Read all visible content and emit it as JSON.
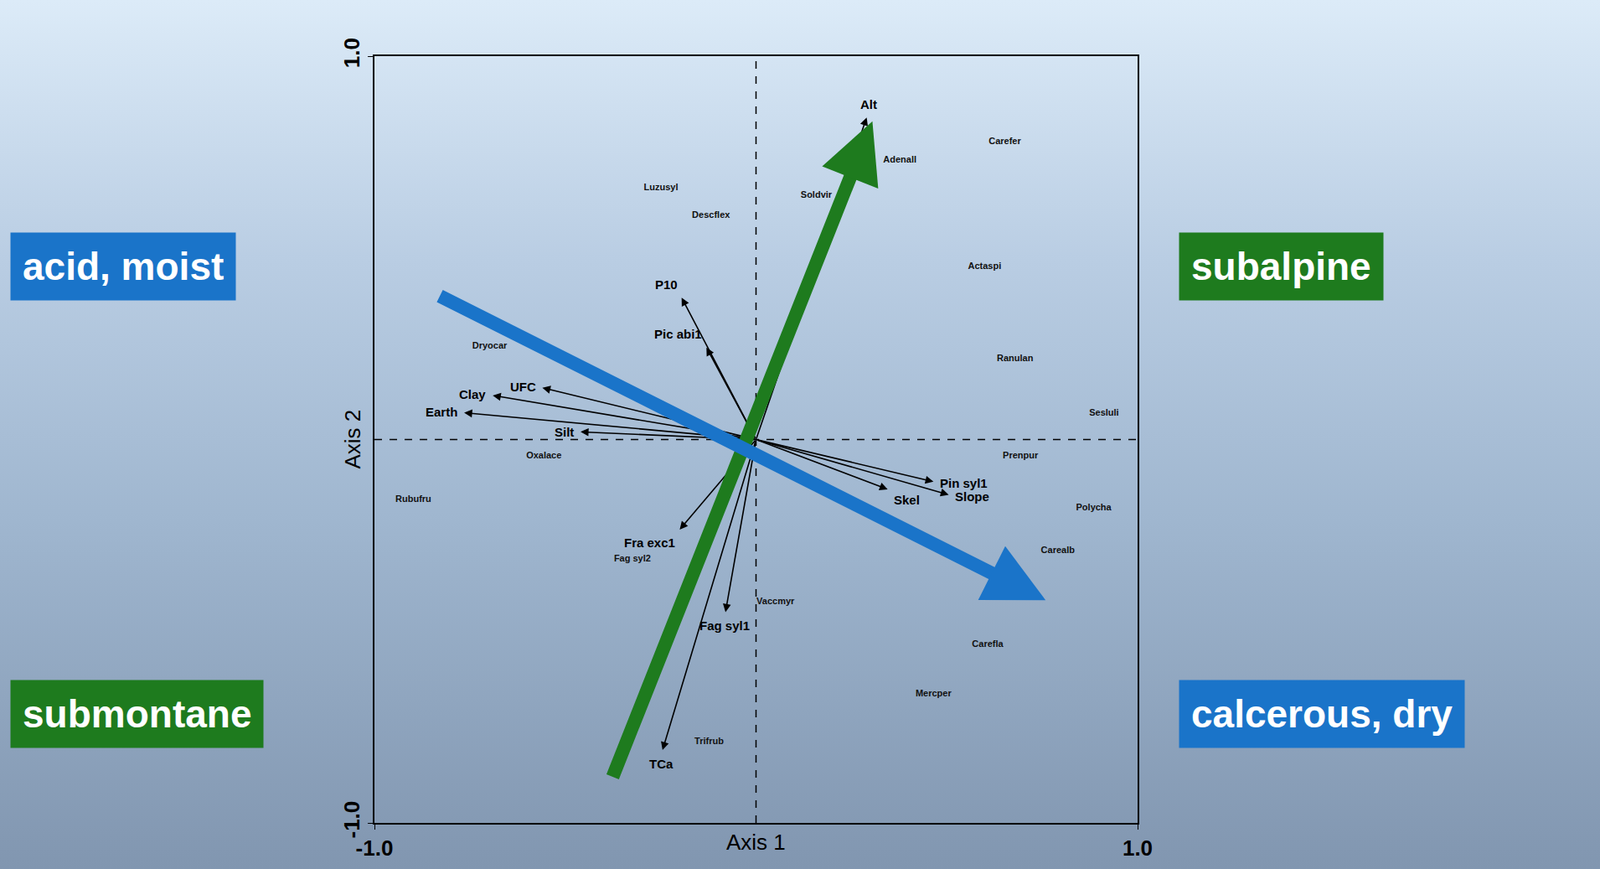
{
  "chart_data": {
    "type": "biplot",
    "x_label": "Axis 1",
    "y_label": "Axis 2",
    "xlim": [
      -1,
      1
    ],
    "ylim": [
      -1,
      1
    ],
    "xticks": [
      {
        "value": -1,
        "label": "-1.0"
      },
      {
        "value": 1,
        "label": "1.0"
      }
    ],
    "yticks": [
      {
        "value": -1,
        "label": "-1.0"
      },
      {
        "value": 1,
        "label": "1.0"
      }
    ],
    "grid": false,
    "environmental_vectors": [
      {
        "name": "Alt",
        "x": 0.29,
        "y": 0.84
      },
      {
        "name": "P10",
        "x": -0.195,
        "y": 0.37
      },
      {
        "name": "Pic abi1",
        "x": -0.13,
        "y": 0.24
      },
      {
        "name": "UFC",
        "x": -0.56,
        "y": 0.135
      },
      {
        "name": "Clay",
        "x": -0.69,
        "y": 0.115
      },
      {
        "name": "Earth",
        "x": -0.765,
        "y": 0.07
      },
      {
        "name": "Silt",
        "x": -0.46,
        "y": 0.02
      },
      {
        "name": "Pin syl1",
        "x": 0.465,
        "y": -0.11
      },
      {
        "name": "Slope",
        "x": 0.505,
        "y": -0.144
      },
      {
        "name": "Skel",
        "x": 0.345,
        "y": -0.13
      },
      {
        "name": "Fra exc1",
        "x": -0.2,
        "y": -0.235
      },
      {
        "name": "Fag syl1",
        "x": -0.08,
        "y": -0.45
      },
      {
        "name": "TCa",
        "x": -0.245,
        "y": -0.81
      }
    ],
    "species": [
      {
        "name": "Carefer",
        "x": 0.652,
        "y": 0.776
      },
      {
        "name": "Luzusyl",
        "x": -0.249,
        "y": 0.656
      },
      {
        "name": "Descflex",
        "x": -0.118,
        "y": 0.584
      },
      {
        "name": "Soldvir",
        "x": 0.158,
        "y": 0.637
      },
      {
        "name": "Adenall",
        "x": 0.377,
        "y": 0.728
      },
      {
        "name": "Actaspi",
        "x": 0.599,
        "y": 0.451
      },
      {
        "name": "Ranulan",
        "x": 0.679,
        "y": 0.211
      },
      {
        "name": "Sesluli",
        "x": 0.912,
        "y": 0.069
      },
      {
        "name": "Dryocar",
        "x": -0.698,
        "y": 0.243
      },
      {
        "name": "Oxalace",
        "x": -0.556,
        "y": -0.043
      },
      {
        "name": "Rubufru",
        "x": -0.898,
        "y": -0.157
      },
      {
        "name": "Prenpur",
        "x": 0.693,
        "y": -0.043
      },
      {
        "name": "Polycha",
        "x": 0.885,
        "y": -0.179
      },
      {
        "name": "Carealb",
        "x": 0.791,
        "y": -0.291
      },
      {
        "name": "Fag syl2",
        "x": -0.324,
        "y": -0.312
      },
      {
        "name": "Vaccmyr",
        "x": 0.051,
        "y": -0.424
      },
      {
        "name": "Carefla",
        "x": 0.607,
        "y": -0.536
      },
      {
        "name": "Mercper",
        "x": 0.465,
        "y": -0.664
      },
      {
        "name": "Trifrub",
        "x": -0.123,
        "y": -0.789
      }
    ],
    "gradients": [
      {
        "from": [
          -0.377,
          -0.883
        ],
        "to": [
          0.305,
          0.83
        ],
        "color": "#1e7b1e",
        "start_label": "submontane",
        "end_label": "subalpine"
      },
      {
        "from": [
          -0.832,
          0.376
        ],
        "to": [
          0.759,
          -0.419
        ],
        "color": "#1a74c9",
        "start_label": "acid, moist",
        "end_label": "calcerous, dry"
      }
    ]
  }
}
